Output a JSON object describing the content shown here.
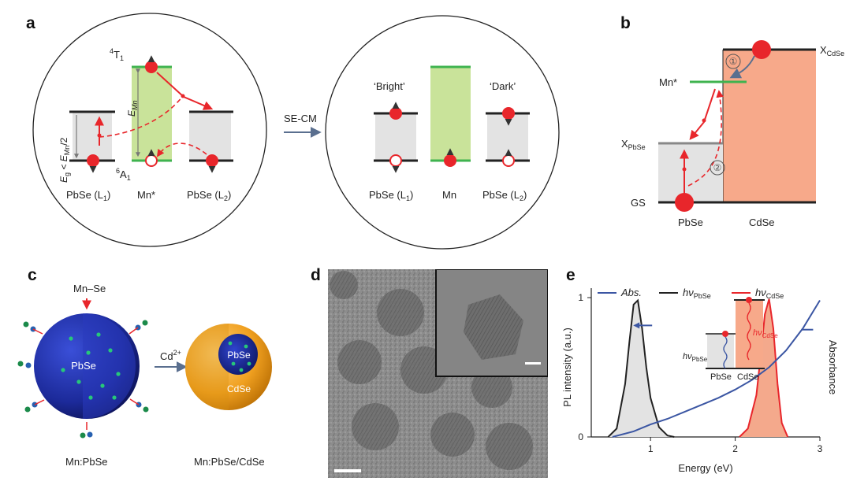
{
  "panels": {
    "a": {
      "letter": "a",
      "left_levels": {
        "top": "4T1",
        "top_sup": "4",
        "top_main": "T",
        "top_sub": "1",
        "bottom_sup": "6",
        "bottom_main": "A",
        "bottom_sub": "1",
        "energy": "E",
        "energy_sub": "Mn"
      },
      "eg_condition": {
        "prefix": "E",
        "sub": "g",
        "mid": " < E",
        "mid_sub": "Mn",
        "suffix": "/2"
      },
      "left_labels": {
        "l1": "PbSe (L",
        "l1_sub": "1",
        "mn": "Mn*",
        "l2": "PbSe (L",
        "l2_sub": "2"
      },
      "arrow_label": "SE-CM",
      "right_labels": {
        "bright": "‘Bright’",
        "dark": "‘Dark’",
        "l1": "PbSe (L",
        "l1_sub": "1",
        "mn": "Mn",
        "l2": "PbSe (L",
        "l2_sub": "2"
      }
    },
    "b": {
      "letter": "b",
      "x_cdse": "X",
      "x_cdse_sub": "CdSe",
      "mn_star": "Mn*",
      "x_pbse": "X",
      "x_pbse_sub": "PbSe",
      "gs": "GS",
      "step1": "①",
      "step2": "②",
      "pbse": "PbSe",
      "cdse": "CdSe"
    },
    "c": {
      "letter": "c",
      "precursor": "Mn–Se",
      "core": "PbSe",
      "reagent": "Cd",
      "reagent_sup": "2+",
      "shell_core": "PbSe",
      "shell": "CdSe",
      "caption_left": "Mn:PbSe",
      "caption_right": "Mn:PbSe/CdSe"
    },
    "d": {
      "letter": "d"
    },
    "e": {
      "letter": "e"
    }
  },
  "colors": {
    "red": "#e8262b",
    "green": "#3fb34f",
    "mn_band": "#c9e39a",
    "band_gray": "#e3e3e3",
    "cdse": "#f7a98a",
    "blue_curve": "#3b56a3",
    "pl_red_fill": "#f4a98c"
  },
  "chart_data": {
    "type": "line",
    "title": "",
    "xlabel": "Energy (eV)",
    "ylabel": "PL intensity (a.u.)",
    "y2label": "Absorbance",
    "xlim": [
      0.3,
      3.0
    ],
    "ylim": [
      0,
      1.0
    ],
    "xticks": [
      "1",
      "2",
      "3"
    ],
    "yticks": [
      "0",
      "1"
    ],
    "legend": [
      {
        "name": "Abs.",
        "color": "#3b56a3"
      },
      {
        "name": "hν",
        "sub": "PbSe",
        "color": "#222222"
      },
      {
        "name": "hν",
        "sub": "CdSe",
        "color": "#e8262b"
      }
    ],
    "series": [
      {
        "name": "hν PbSe",
        "x": [
          0.5,
          0.6,
          0.7,
          0.75,
          0.8,
          0.85,
          0.9,
          0.95,
          1.0,
          1.1,
          1.2,
          1.28
        ],
        "values": [
          0.0,
          0.06,
          0.38,
          0.68,
          0.95,
          0.98,
          0.78,
          0.5,
          0.28,
          0.07,
          0.01,
          0.0
        ]
      },
      {
        "name": "hν CdSe",
        "x": [
          2.05,
          2.15,
          2.25,
          2.3,
          2.35,
          2.4,
          2.45,
          2.5,
          2.55,
          2.62
        ],
        "values": [
          0.0,
          0.06,
          0.3,
          0.58,
          0.88,
          0.99,
          0.78,
          0.38,
          0.1,
          0.0
        ]
      },
      {
        "name": "Abs.",
        "x": [
          0.55,
          0.8,
          1.0,
          1.2,
          1.4,
          1.6,
          1.8,
          2.0,
          2.2,
          2.4,
          2.6,
          2.8,
          3.0
        ],
        "values": [
          0.0,
          0.04,
          0.09,
          0.13,
          0.18,
          0.23,
          0.28,
          0.34,
          0.41,
          0.5,
          0.62,
          0.78,
          0.98
        ]
      }
    ],
    "inset": {
      "left": "PbSe",
      "right": "CdSe",
      "hv": "hν",
      "hv_left_sub": "PbSe",
      "hv_right_sub": "CdSe"
    }
  }
}
